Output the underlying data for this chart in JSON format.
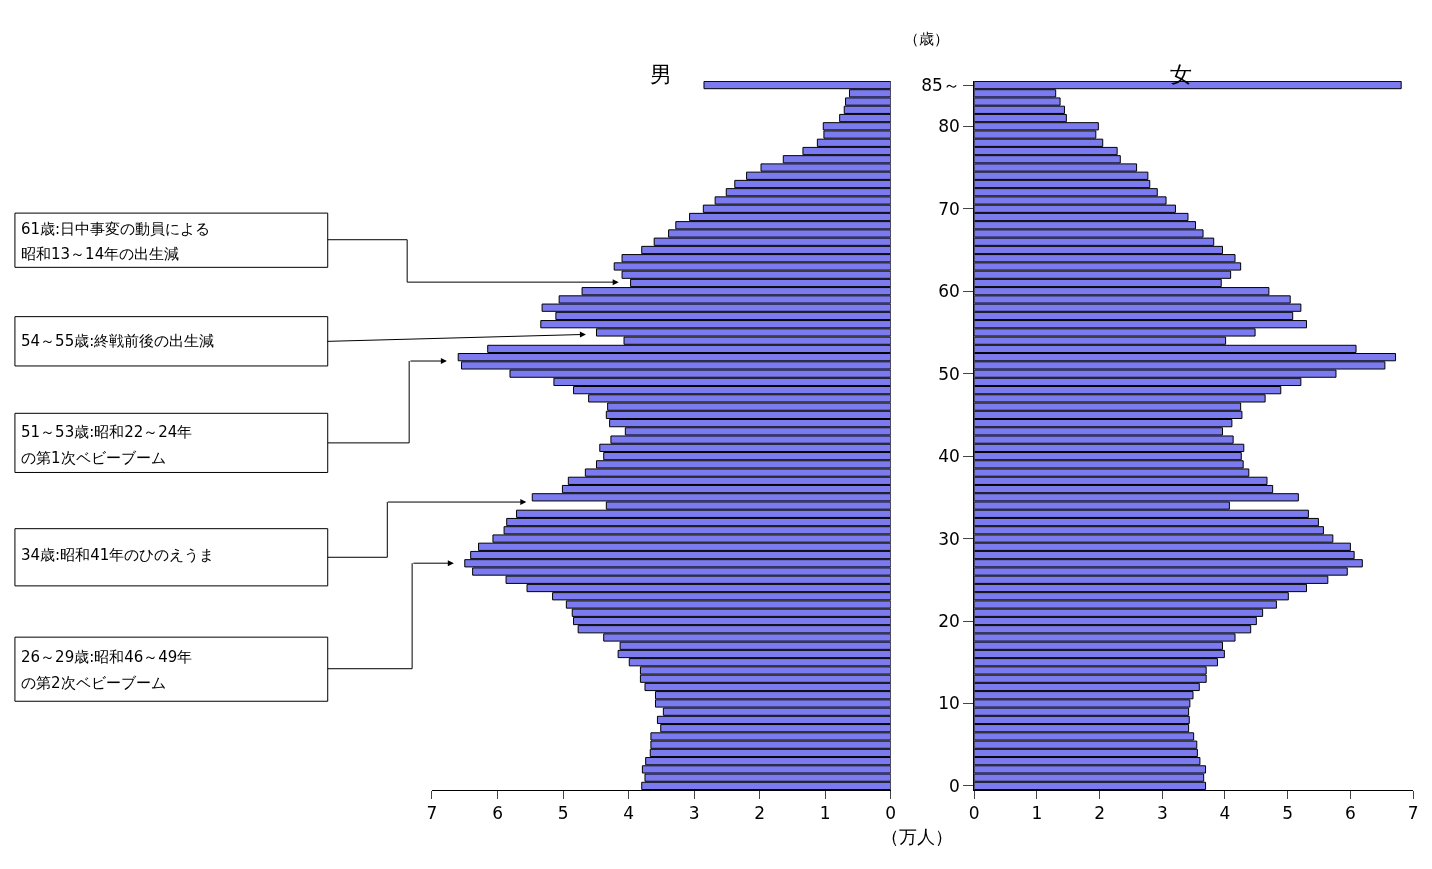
{
  "chart_data": [
    {
      "type": "bar",
      "orientation": "horizontal",
      "title": "男",
      "xlabel": "（万人）",
      "color": "#7b7bef",
      "categories": [
        null,
        null,
        null,
        null,
        null,
        null,
        null,
        null,
        null,
        null,
        null,
        null,
        null,
        null,
        null,
        null,
        null,
        null,
        null,
        null,
        null,
        null,
        null,
        null,
        null,
        null,
        null,
        null,
        null,
        null,
        null,
        null,
        null,
        null,
        null,
        null,
        null,
        null,
        null,
        null,
        null,
        null,
        null,
        null,
        null,
        null,
        null,
        null,
        null,
        null,
        null,
        null,
        null,
        null,
        null,
        null,
        null,
        null,
        null,
        null,
        null,
        null,
        null,
        null,
        null,
        null,
        null,
        null,
        null,
        null,
        null,
        null,
        null,
        null,
        null,
        null,
        null,
        null,
        null,
        null,
        null,
        null,
        null,
        null,
        null,
        null
      ],
      "values": [
        2.85,
        0.63,
        0.69,
        0.71,
        0.78,
        1.03,
        1.02,
        1.12,
        1.34,
        1.64,
        1.98,
        2.2,
        2.38,
        2.51,
        2.68,
        2.86,
        3.07,
        3.28,
        3.39,
        3.61,
        3.8,
        4.1,
        4.22,
        4.1,
        3.97,
        4.71,
        5.06,
        5.32,
        5.11,
        5.34,
        4.49,
        4.07,
        6.15,
        6.6,
        6.55,
        5.81,
        5.14,
        4.84,
        4.61,
        4.32,
        4.34,
        4.29,
        4.05,
        4.27,
        4.44,
        4.38,
        4.49,
        4.66,
        4.92,
        5.01,
        5.47,
        4.34,
        5.71,
        5.86,
        5.9,
        6.07,
        6.29,
        6.41,
        6.5,
        6.38,
        5.87,
        5.55,
        5.16,
        4.95,
        4.86,
        4.84,
        4.77,
        4.38,
        4.13,
        4.16,
        3.99,
        3.82,
        3.82,
        3.75,
        3.59,
        3.59,
        3.47,
        3.56,
        3.51,
        3.66,
        3.66,
        3.67,
        3.74,
        3.79,
        3.75,
        3.8
      ],
      "xlim": [
        7,
        0
      ],
      "xticks": [
        0,
        1,
        2,
        3,
        4,
        5,
        6,
        7
      ],
      "annotations": [
        "61歳:日中事変の動員による",
        "昭和13～14年の出生減",
        "54～55歳:終戦前後の出生減",
        "51～53歳:昭和22～24年",
        "の第1次ベビーブーム",
        "34歳:昭和41年のひのえうま",
        "26～29歳:昭和46～49年",
        "の第2次ベビーブーム"
      ]
    },
    {
      "type": "bar",
      "orientation": "horizontal",
      "title": "女",
      "ylabel": "（歳）",
      "color": "#7b7bef",
      "categories": [
        "85～",
        null,
        null,
        null,
        null,
        "80",
        null,
        null,
        null,
        null,
        null,
        null,
        null,
        null,
        null,
        "70",
        null,
        null,
        null,
        null,
        null,
        null,
        null,
        null,
        null,
        "60",
        null,
        null,
        null,
        null,
        null,
        null,
        null,
        null,
        null,
        "50",
        null,
        null,
        null,
        null,
        null,
        null,
        null,
        null,
        null,
        "40",
        null,
        null,
        null,
        null,
        null,
        null,
        null,
        null,
        null,
        "30",
        null,
        null,
        null,
        null,
        null,
        null,
        null,
        null,
        null,
        "20",
        null,
        null,
        null,
        null,
        null,
        null,
        null,
        null,
        null,
        "10",
        null,
        null,
        null,
        null,
        null,
        null,
        null,
        null,
        null,
        "0"
      ],
      "values": [
        6.81,
        1.3,
        1.37,
        1.44,
        1.47,
        1.98,
        1.94,
        2.05,
        2.28,
        2.33,
        2.59,
        2.77,
        2.8,
        2.92,
        3.06,
        3.21,
        3.41,
        3.53,
        3.65,
        3.82,
        3.96,
        4.16,
        4.25,
        4.09,
        3.94,
        4.7,
        5.04,
        5.21,
        5.08,
        5.3,
        4.48,
        4.01,
        6.09,
        6.72,
        6.55,
        5.77,
        5.21,
        4.89,
        4.64,
        4.25,
        4.27,
        4.11,
        3.96,
        4.13,
        4.3,
        4.26,
        4.29,
        4.38,
        4.67,
        4.76,
        5.17,
        4.07,
        5.33,
        5.49,
        5.57,
        5.72,
        6.0,
        6.06,
        6.19,
        5.95,
        5.64,
        5.3,
        5.01,
        4.82,
        4.6,
        4.5,
        4.41,
        4.16,
        3.96,
        3.99,
        3.88,
        3.7,
        3.7,
        3.59,
        3.49,
        3.44,
        3.42,
        3.43,
        3.42,
        3.5,
        3.55,
        3.56,
        3.6,
        3.69,
        3.66,
        3.69
      ],
      "xlim": [
        0,
        7
      ],
      "xticks": [
        0,
        1,
        2,
        3,
        4,
        5,
        6,
        7
      ]
    }
  ]
}
